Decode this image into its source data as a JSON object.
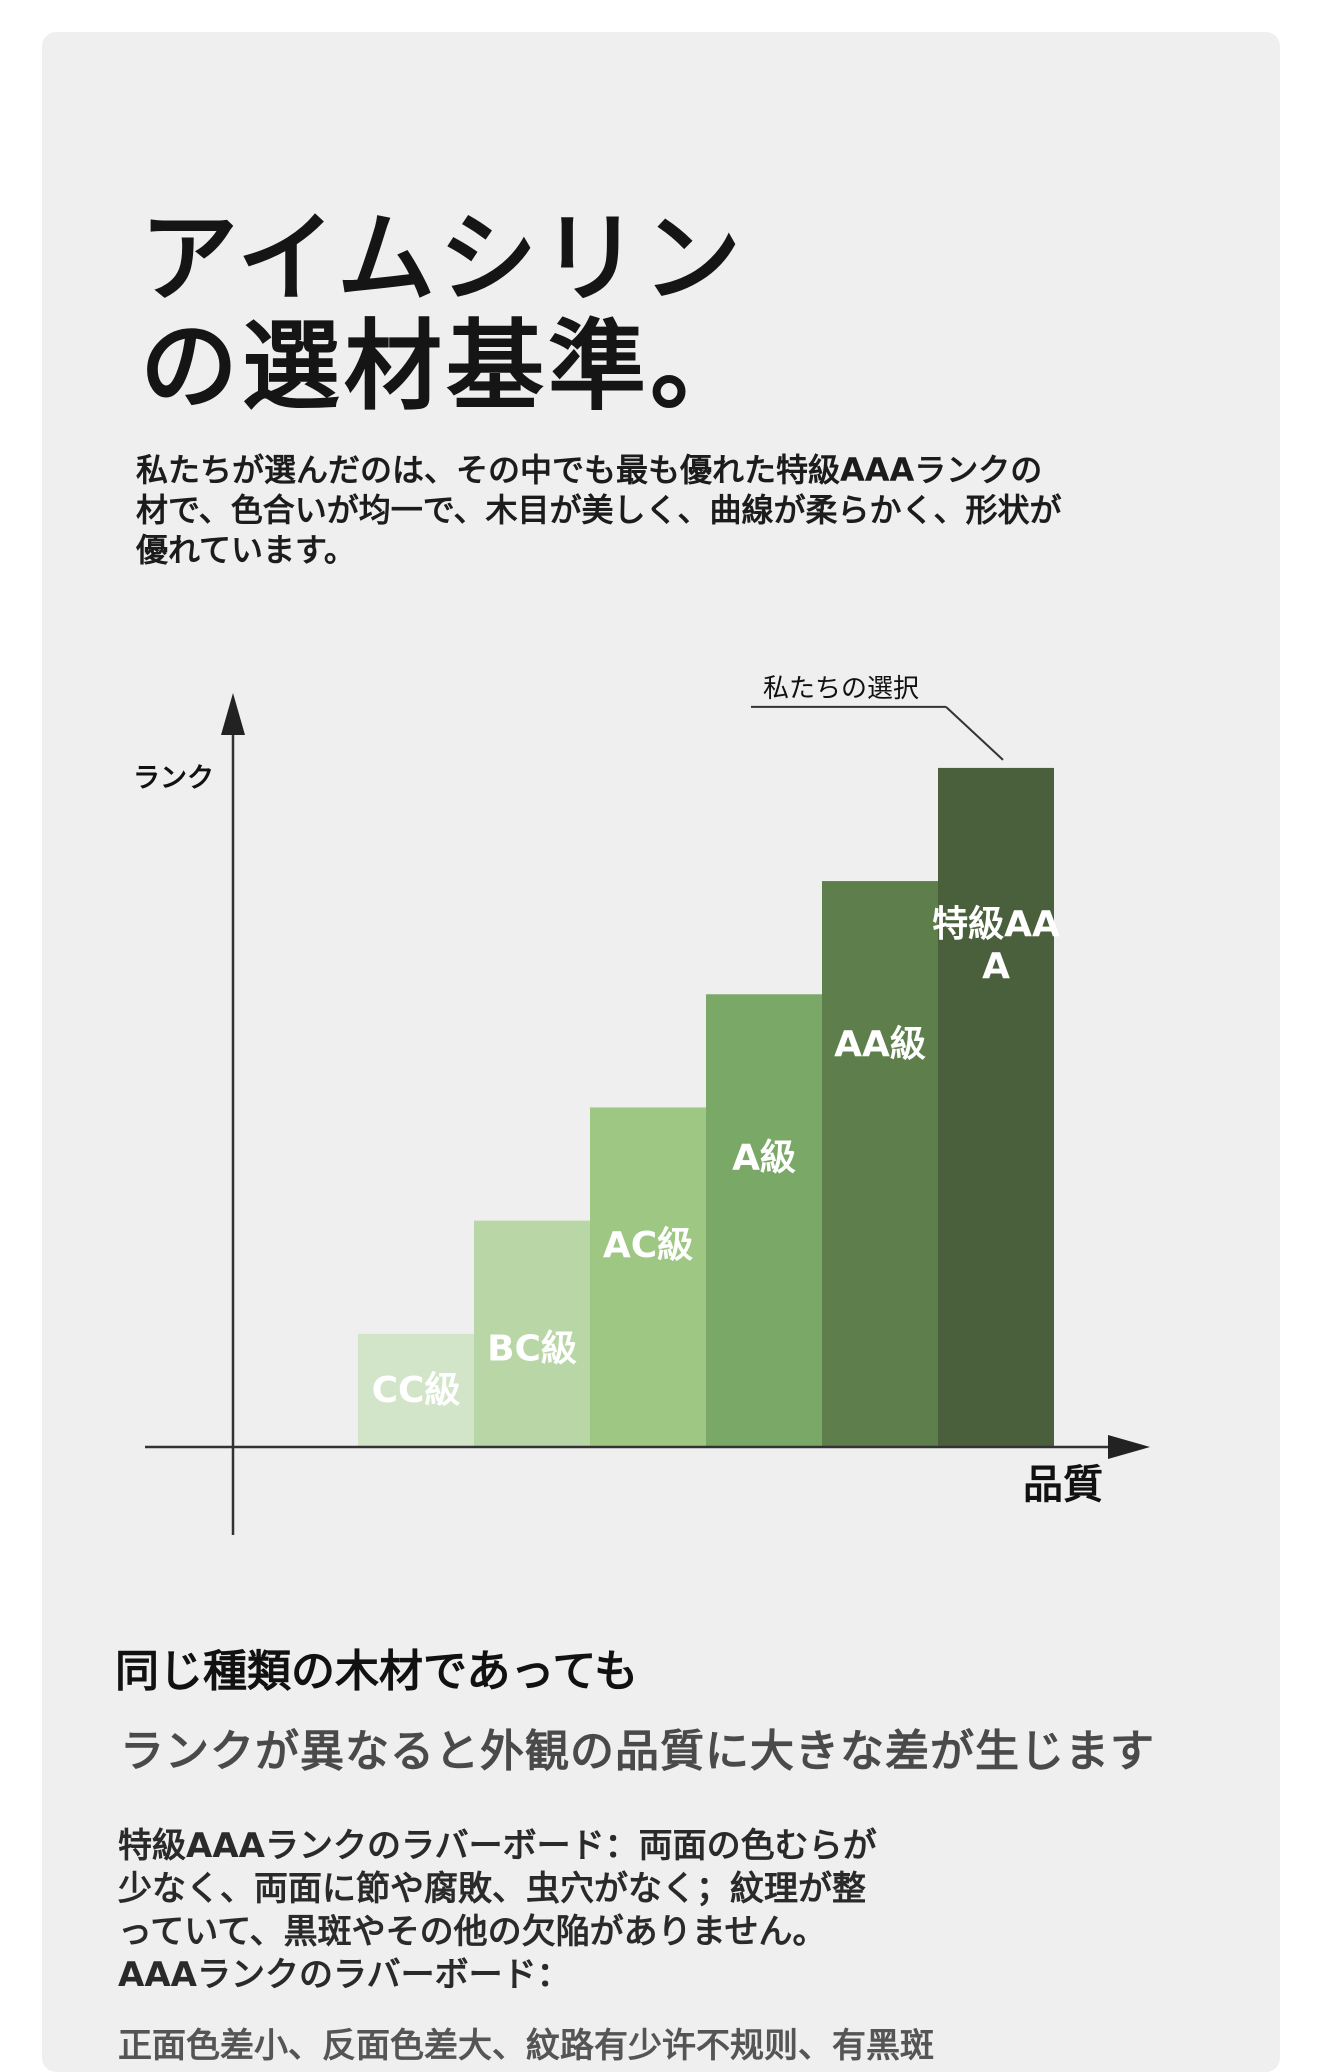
{
  "heading": {
    "line1": "アイムシリン",
    "line2": "の選材基準。"
  },
  "intro": "私たちが選んだのは、その中でも最も優れた特級AAAランクの材で、色合いが均一で、木目が美しく、曲線が柔らかく、形状が優れています。",
  "chart_data": {
    "type": "bar",
    "ylabel": "ランク",
    "xlabel": "品質",
    "categories": [
      "CC級",
      "BC級",
      "AC級",
      "A級",
      "AA級",
      "特級AAA"
    ],
    "values": [
      1,
      2,
      3,
      4,
      5,
      6
    ],
    "colors": [
      "#d3e5c8",
      "#b8d6a6",
      "#9dc783",
      "#7aa866",
      "#5e7e4b",
      "#4a5f3c"
    ],
    "label_color": "#ffffff",
    "annotation": "私たちの選択",
    "annotation_target": "特級AAA",
    "ylim": [
      0,
      6.6
    ]
  },
  "section": {
    "subtitle1": "同じ種類の木材であっても",
    "subtitle2": "ランクが異なると外観の品質に大きな差が生じます",
    "body": "特級AAAランクのラバーボード：両面の色むらが少なく、両面に節や腐敗、虫穴がなく；紋理が整っていて、黒斑やその他の欠陥がありません。AAAランクのラバーボード：",
    "cutoff": "正面色差小、反面色差大、紋路有少许不规则、有黑斑"
  }
}
